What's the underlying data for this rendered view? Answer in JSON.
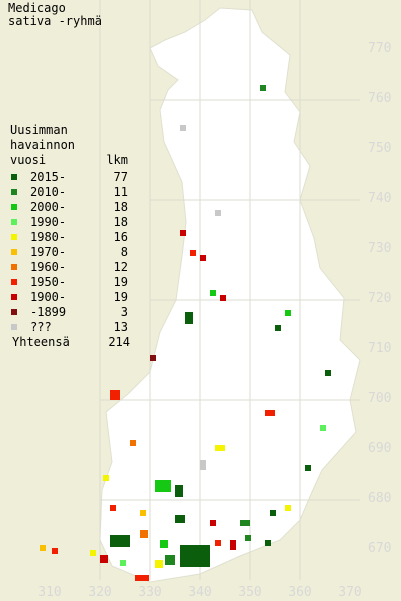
{
  "title": [
    "Medicago",
    "sativa -ryhmä"
  ],
  "legend": {
    "heading": [
      "Uusimman",
      "havainnon"
    ],
    "col_year": "vuosi",
    "col_count": "lkm",
    "rows": [
      {
        "year": "2015-",
        "count": "77",
        "color": "#0b5e0b"
      },
      {
        "year": "2010-",
        "count": "11",
        "color": "#1f861f"
      },
      {
        "year": "2000-",
        "count": "18",
        "color": "#14c814"
      },
      {
        "year": "1990-",
        "count": "18",
        "color": "#5cf05c"
      },
      {
        "year": "1980-",
        "count": "16",
        "color": "#f4f400"
      },
      {
        "year": "1970-",
        "count": "8",
        "color": "#f8c000"
      },
      {
        "year": "1960-",
        "count": "12",
        "color": "#f07000"
      },
      {
        "year": "1950-",
        "count": "19",
        "color": "#f02000"
      },
      {
        "year": "1900-",
        "count": "19",
        "color": "#c80000"
      },
      {
        "year": "-1899",
        "count": "3",
        "color": "#801010"
      },
      {
        "year": "???",
        "count": "13",
        "color": "#c8c8c8"
      }
    ],
    "total_label": "Yhteensä",
    "total": "214"
  },
  "axes": {
    "y": [
      "770",
      "760",
      "750",
      "740",
      "730",
      "720",
      "710",
      "700",
      "690",
      "680",
      "670"
    ],
    "x": [
      "310",
      "320",
      "330",
      "340",
      "350",
      "360",
      "370"
    ]
  }
}
